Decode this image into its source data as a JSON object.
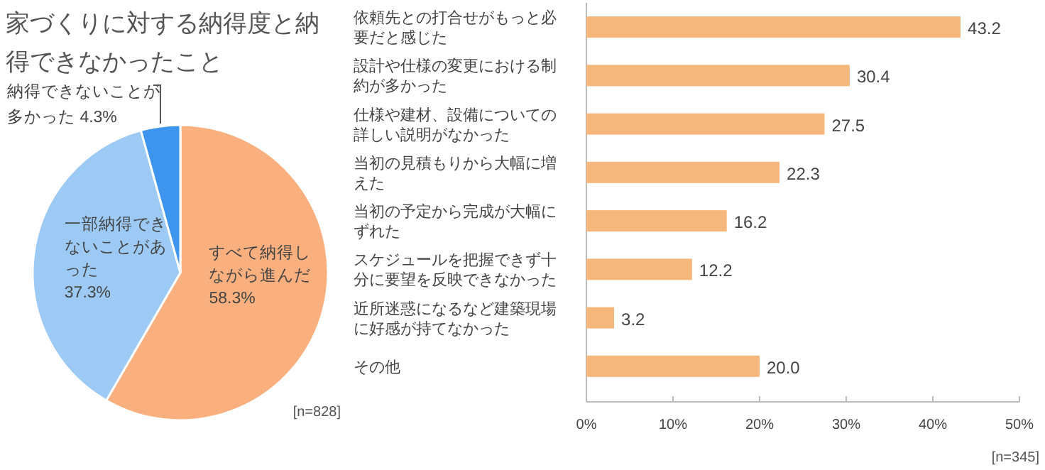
{
  "chart_data": [
    {
      "type": "pie",
      "title": "家づくりに対する納得度と納得できなかったこと",
      "categories": [
        "すべて納得しながら進んだ",
        "一部納得できないことがあった",
        "納得できないことが多かった"
      ],
      "values": [
        58.3,
        37.3,
        4.3
      ],
      "value_labels": [
        "58.3%",
        "37.3%",
        "4.3%"
      ],
      "colors": [
        "#f9b07e",
        "#9ccaf5",
        "#3d95ee"
      ],
      "annotations": [
        "[n=828]"
      ]
    },
    {
      "type": "bar",
      "orientation": "horizontal",
      "categories": [
        "依頼先との打合せがもっと必要だと感じた",
        "設計や仕様の変更における制約が多かった",
        "仕様や建材、設備についての詳しい説明がなかった",
        "当初の見積もりから大幅に増えた",
        "当初の予定から完成が大幅にずれた",
        "スケジュールを把握できず十分に要望を反映できなかった",
        "近所迷惑になるなど建築現場に好感が持てなかった",
        "その他"
      ],
      "values": [
        43.2,
        30.4,
        27.5,
        22.3,
        16.2,
        12.2,
        3.2,
        20.0
      ],
      "value_labels": [
        "43.2",
        "30.4",
        "27.5",
        "22.3",
        "16.2",
        "12.2",
        "3.2",
        "20.0"
      ],
      "color": "#f6b77c",
      "xlim": [
        0,
        50
      ],
      "xticks": [
        {
          "value": 0,
          "label": "0%"
        },
        {
          "value": 10,
          "label": "10%"
        },
        {
          "value": 20,
          "label": "20%"
        },
        {
          "value": 30,
          "label": "30%"
        },
        {
          "value": 40,
          "label": "40%"
        },
        {
          "value": 50,
          "label": "50%"
        }
      ],
      "annotations": [
        "[n=345]"
      ]
    }
  ]
}
